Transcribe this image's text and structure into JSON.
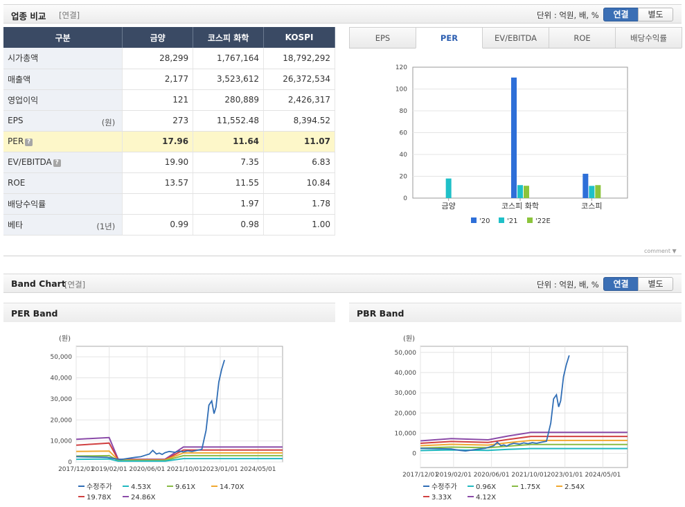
{
  "comparison": {
    "title": "업종 비교",
    "sub": "[연결]",
    "unit": "단위 : 억원, 배, %",
    "toggle_on": "연결",
    "toggle_off": "별도",
    "headers": [
      "구분",
      "금양",
      "코스피 화학",
      "KOSPI"
    ],
    "rows": [
      {
        "label": "시가총액",
        "unit": "",
        "help": false,
        "values": [
          "28,299",
          "1,767,164",
          "18,792,292"
        ]
      },
      {
        "label": "매출액",
        "unit": "",
        "help": false,
        "values": [
          "2,177",
          "3,523,612",
          "26,372,534"
        ]
      },
      {
        "label": "영업이익",
        "unit": "",
        "help": false,
        "values": [
          "121",
          "280,889",
          "2,426,317"
        ]
      },
      {
        "label": "EPS",
        "unit": "(원)",
        "help": false,
        "values": [
          "273",
          "11,552.48",
          "8,394.52"
        ]
      },
      {
        "label": "PER",
        "unit": "",
        "help": true,
        "values": [
          "17.96",
          "11.64",
          "11.07"
        ]
      },
      {
        "label": "EV/EBITDA",
        "unit": "",
        "help": true,
        "values": [
          "19.90",
          "7.35",
          "6.83"
        ]
      },
      {
        "label": "ROE",
        "unit": "",
        "help": false,
        "values": [
          "13.57",
          "11.55",
          "10.84"
        ]
      },
      {
        "label": "배당수익률",
        "unit": "",
        "help": false,
        "values": [
          "",
          "1.97",
          "1.78"
        ]
      },
      {
        "label": "베타",
        "unit": "(1년)",
        "help": false,
        "values": [
          "0.99",
          "0.98",
          "1.00"
        ]
      }
    ],
    "help_mark": "?",
    "tabs": [
      "EPS",
      "PER",
      "EV/EBITDA",
      "ROE",
      "배당수익률"
    ],
    "active_tab": "PER",
    "comment_label": "comment ▼"
  },
  "band": {
    "title": "Band Chart",
    "sub": "[연결]",
    "unit": "단위 : 억원, 배, %",
    "toggle_on": "연결",
    "toggle_off": "별도",
    "per_title": "PER Band",
    "pbr_title": "PBR Band"
  },
  "colors": {
    "s20": "#2e6fd8",
    "s21": "#1fc0c8",
    "s22": "#8cc43c",
    "price": "#2f6db5",
    "b1": "#20b8c0",
    "b2": "#88bb44",
    "b3": "#f0a830",
    "b4": "#d04040",
    "b5": "#8a4aa8"
  },
  "chart_data": [
    {
      "type": "bar",
      "title": "PER",
      "categories": [
        "금양",
        "코스피 화학",
        "코스피"
      ],
      "series": [
        {
          "name": "'20",
          "values": [
            0,
            110.5,
            22.3
          ]
        },
        {
          "name": "'21",
          "values": [
            17.96,
            11.9,
            11.2
          ]
        },
        {
          "name": "'22E",
          "values": [
            0,
            11.3,
            11.9
          ]
        }
      ],
      "ylim": [
        0,
        120
      ],
      "yticks": [
        0,
        20,
        40,
        60,
        80,
        100,
        120
      ],
      "legend": "bottom"
    },
    {
      "type": "line",
      "title": "PER Band",
      "ylabel": "(원)",
      "x_range": [
        2017.917,
        2025.2
      ],
      "xticks": [
        "2017/12/01",
        "2019/02/01",
        "2020/06/01",
        "2021/10/01",
        "2023/01/01",
        "2024/05/01"
      ],
      "xtick_values": [
        2017.917,
        2019.083,
        2020.417,
        2021.75,
        2023.0,
        2024.333
      ],
      "ylim": [
        0,
        55000
      ],
      "yticks": [
        0,
        10000,
        20000,
        30000,
        40000,
        50000
      ],
      "ytick_labels": [
        "0",
        "10,000",
        "20,000",
        "30,000",
        "40,000",
        "50,000"
      ],
      "series": [
        {
          "name": "수정주가",
          "x": [
            2017.92,
            2018.3,
            2018.7,
            2019.0,
            2019.08,
            2019.3,
            2019.5,
            2019.8,
            2020.0,
            2020.2,
            2020.35,
            2020.5,
            2020.62,
            2020.75,
            2020.85,
            2020.95,
            2021.05,
            2021.2,
            2021.4,
            2021.55,
            2021.7,
            2021.85,
            2022.0,
            2022.2,
            2022.35,
            2022.5,
            2022.6,
            2022.7,
            2022.78,
            2022.85,
            2022.95,
            2023.05,
            2023.15
          ],
          "y": [
            2500,
            2400,
            2300,
            2200,
            2000,
            1500,
            1200,
            1800,
            2200,
            2500,
            3200,
            3800,
            5500,
            3800,
            4200,
            3600,
            4400,
            5000,
            4600,
            5200,
            4800,
            5300,
            5000,
            5600,
            6000,
            15000,
            27000,
            29000,
            23000,
            26000,
            38000,
            44000,
            48500
          ]
        },
        {
          "name": "4.53X",
          "x": [
            2017.92,
            2018.5,
            2019.08,
            2019.4,
            2021.05,
            2021.7,
            2025.2
          ],
          "y": [
            1300,
            1350,
            1400,
            400,
            400,
            1600,
            1600
          ]
        },
        {
          "name": "9.61X",
          "x": [
            2017.92,
            2018.5,
            2019.08,
            2019.4,
            2021.05,
            2021.7,
            2025.2
          ],
          "y": [
            2800,
            2900,
            3000,
            700,
            700,
            3000,
            3000
          ]
        },
        {
          "name": "14.70X",
          "x": [
            2017.92,
            2018.5,
            2019.08,
            2019.4,
            2021.05,
            2021.7,
            2025.2
          ],
          "y": [
            5000,
            5100,
            5200,
            900,
            900,
            4300,
            4300
          ]
        },
        {
          "name": "19.78X",
          "x": [
            2017.92,
            2018.5,
            2019.08,
            2019.4,
            2021.05,
            2021.7,
            2025.2
          ],
          "y": [
            8000,
            8500,
            9000,
            1100,
            1100,
            5700,
            5700
          ]
        },
        {
          "name": "24.86X",
          "x": [
            2017.92,
            2018.5,
            2019.08,
            2019.4,
            2021.05,
            2021.7,
            2025.2
          ],
          "y": [
            10800,
            11200,
            11600,
            1300,
            1300,
            7100,
            7100
          ]
        }
      ],
      "legend": "bottom"
    },
    {
      "type": "line",
      "title": "PBR Band",
      "ylabel": "(원)",
      "x_range": [
        2017.917,
        2025.2
      ],
      "xticks": [
        "2017/12/01",
        "2019/02/01",
        "2020/06/01",
        "2021/10/01",
        "2023/01/01",
        "2024/05/01"
      ],
      "xtick_values": [
        2017.917,
        2019.083,
        2020.417,
        2021.75,
        2023.0,
        2024.333
      ],
      "ylim": [
        -7000,
        53000
      ],
      "yticks": [
        0,
        10000,
        20000,
        30000,
        40000,
        50000
      ],
      "ytick_labels": [
        "0",
        "10,000",
        "20,000",
        "30,000",
        "40,000",
        "50,000"
      ],
      "series": [
        {
          "name": "수정주가",
          "x": [
            2017.92,
            2018.3,
            2018.7,
            2019.0,
            2019.08,
            2019.3,
            2019.5,
            2019.8,
            2020.0,
            2020.2,
            2020.35,
            2020.5,
            2020.62,
            2020.75,
            2020.85,
            2020.95,
            2021.05,
            2021.2,
            2021.4,
            2021.55,
            2021.7,
            2021.85,
            2022.0,
            2022.2,
            2022.35,
            2022.5,
            2022.6,
            2022.7,
            2022.78,
            2022.85,
            2022.95,
            2023.05,
            2023.15
          ],
          "y": [
            2500,
            2400,
            2300,
            2200,
            2000,
            1500,
            1200,
            1800,
            2200,
            2500,
            3200,
            3800,
            5500,
            3800,
            4200,
            3600,
            4400,
            5000,
            4600,
            5200,
            4800,
            5300,
            5000,
            5600,
            6000,
            15000,
            27000,
            29000,
            23000,
            26000,
            38000,
            44000,
            48500
          ]
        },
        {
          "name": "0.96X",
          "x": [
            2017.92,
            2019.0,
            2020.3,
            2021.0,
            2021.8,
            2025.2
          ],
          "y": [
            1400,
            1700,
            1500,
            2000,
            2400,
            2400
          ]
        },
        {
          "name": "1.75X",
          "x": [
            2017.92,
            2019.0,
            2020.3,
            2021.0,
            2021.8,
            2025.2
          ],
          "y": [
            2600,
            3100,
            2800,
            3600,
            4400,
            4400
          ]
        },
        {
          "name": "2.54X",
          "x": [
            2017.92,
            2019.0,
            2020.3,
            2021.0,
            2021.8,
            2025.2
          ],
          "y": [
            3800,
            4500,
            4100,
            5300,
            6400,
            6400
          ]
        },
        {
          "name": "3.33X",
          "x": [
            2017.92,
            2019.0,
            2020.3,
            2021.0,
            2021.8,
            2025.2
          ],
          "y": [
            5000,
            5900,
            5400,
            6900,
            8400,
            8400
          ]
        },
        {
          "name": "4.12X",
          "x": [
            2017.92,
            2019.0,
            2020.3,
            2021.0,
            2021.8,
            2025.2
          ],
          "y": [
            6200,
            7300,
            6700,
            8600,
            10400,
            10400
          ]
        }
      ],
      "legend": "bottom"
    }
  ]
}
